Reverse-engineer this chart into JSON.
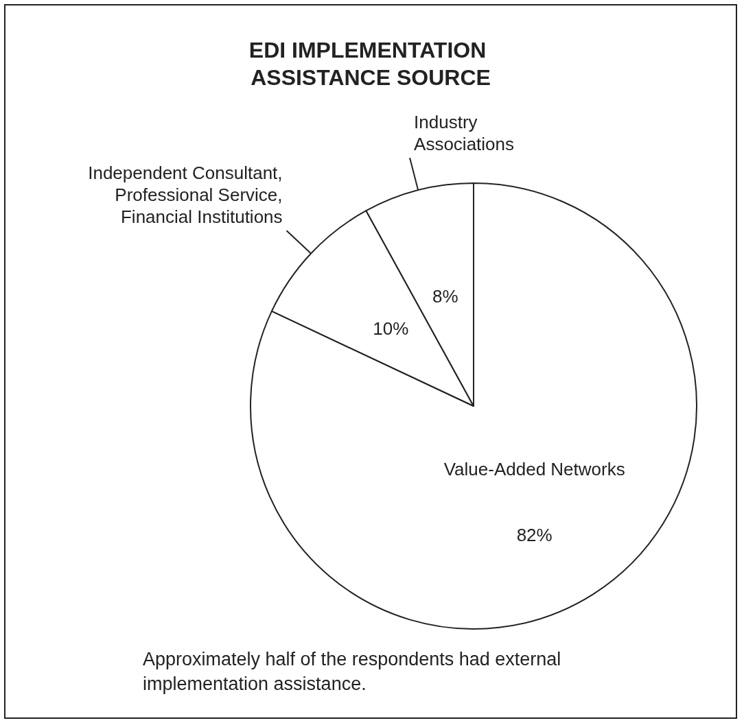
{
  "chart_data": {
    "type": "pie",
    "title": "EDI IMPLEMENTATION ASSISTANCE SOURCE",
    "categories": [
      "Value-Added Networks",
      "Independent Consultant, Professional Service, Financial Institutions",
      "Industry Associations"
    ],
    "values": [
      82,
      10,
      8
    ],
    "value_labels": [
      "82%",
      "10%",
      "8%"
    ],
    "colors": [
      "#ffffff",
      "#ffffff",
      "#ffffff"
    ],
    "annotations": [
      "Approximately half of the respondents had external implementation assistance."
    ]
  }
}
